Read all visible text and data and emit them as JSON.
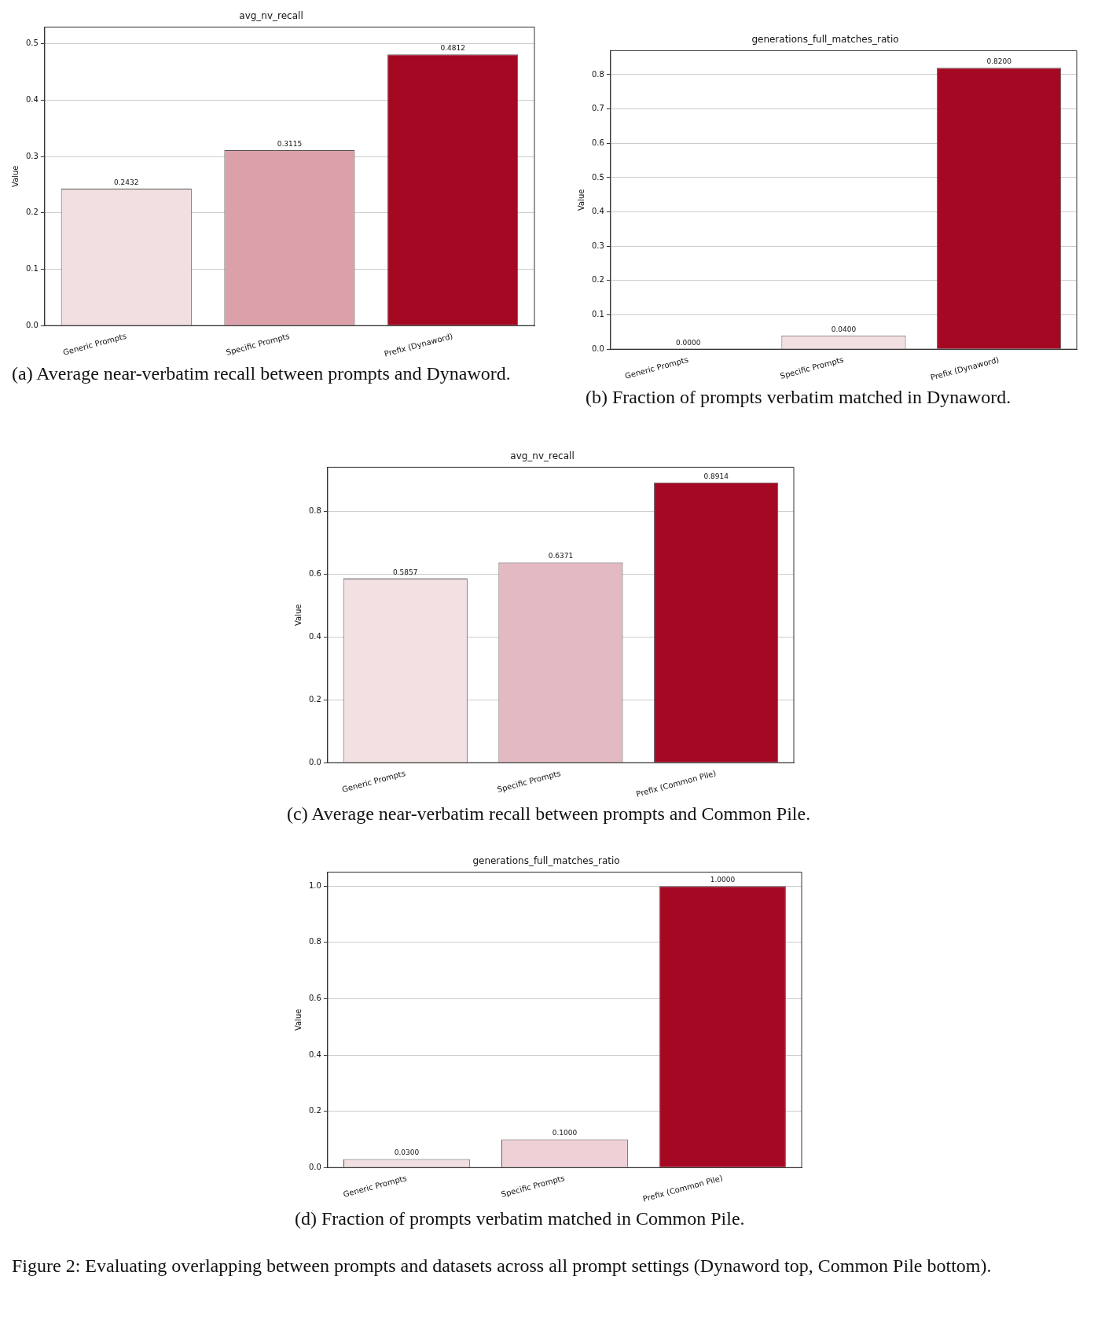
{
  "chart_data": [
    {
      "type": "bar",
      "title": "avg_nv_recall",
      "ylabel": "Value",
      "categories": [
        "Generic Prompts",
        "Specific Prompts",
        "Prefix (Dynaword)"
      ],
      "values": [
        0.2432,
        0.3115,
        0.4812
      ],
      "value_labels": [
        "0.2432",
        "0.3115",
        "0.4812"
      ],
      "colors": [
        "#f2dfe2",
        "#dba0aa",
        "#a50823"
      ],
      "ylim": [
        0,
        0.53
      ],
      "yticks": [
        {
          "value": 0,
          "label": "0.0"
        },
        {
          "value": 0.1,
          "label": "0.1"
        },
        {
          "value": 0.2,
          "label": "0.2"
        },
        {
          "value": 0.3,
          "label": "0.3"
        },
        {
          "value": 0.4,
          "label": "0.4"
        },
        {
          "value": 0.5,
          "label": "0.5"
        }
      ],
      "grid": "y",
      "annotations": [
        "(a) Average near-verbatim recall between prompts and Dynaword."
      ]
    },
    {
      "type": "bar",
      "title": "generations_full_matches_ratio",
      "ylabel": "Value",
      "categories": [
        "Generic Prompts",
        "Specific Prompts",
        "Prefix (Dynaword)"
      ],
      "values": [
        0,
        0.04,
        0.82
      ],
      "value_labels": [
        "0.0000",
        "0.0400",
        "0.8200"
      ],
      "colors": [
        "#f2dfe2",
        "#f2dfe2",
        "#a50823"
      ],
      "ylim": [
        0,
        0.87
      ],
      "yticks": [
        {
          "value": 0,
          "label": "0.0"
        },
        {
          "value": 0.1,
          "label": "0.1"
        },
        {
          "value": 0.2,
          "label": "0.2"
        },
        {
          "value": 0.3,
          "label": "0.3"
        },
        {
          "value": 0.4,
          "label": "0.4"
        },
        {
          "value": 0.5,
          "label": "0.5"
        },
        {
          "value": 0.6,
          "label": "0.6"
        },
        {
          "value": 0.7,
          "label": "0.7"
        },
        {
          "value": 0.8,
          "label": "0.8"
        }
      ],
      "grid": "y",
      "annotations": [
        "(b) Fraction of prompts verbatim matched in Dynaword."
      ]
    },
    {
      "type": "bar",
      "title": "avg_nv_recall",
      "ylabel": "Value",
      "categories": [
        "Generic Prompts",
        "Specific Prompts",
        "Prefix (Common Pile)"
      ],
      "values": [
        0.5857,
        0.6371,
        0.8914
      ],
      "value_labels": [
        "0.5857",
        "0.6371",
        "0.8914"
      ],
      "colors": [
        "#f2e0e3",
        "#e4bac2",
        "#a50823"
      ],
      "ylim": [
        0,
        0.94
      ],
      "yticks": [
        {
          "value": 0,
          "label": "0.0"
        },
        {
          "value": 0.2,
          "label": "0.2"
        },
        {
          "value": 0.4,
          "label": "0.4"
        },
        {
          "value": 0.6,
          "label": "0.6"
        },
        {
          "value": 0.8,
          "label": "0.8"
        }
      ],
      "grid": "y",
      "annotations": [
        "(c) Average near-verbatim recall between prompts and Common Pile."
      ]
    },
    {
      "type": "bar",
      "title": "generations_full_matches_ratio",
      "ylabel": "Value",
      "categories": [
        "Generic Prompts",
        "Specific Prompts",
        "Prefix (Common Pile)"
      ],
      "values": [
        0.03,
        0.1,
        1.0
      ],
      "value_labels": [
        "0.0300",
        "0.1000",
        "1.0000"
      ],
      "colors": [
        "#f2dfe2",
        "#efd0d6",
        "#a50823"
      ],
      "ylim": [
        0,
        1.05
      ],
      "yticks": [
        {
          "value": 0,
          "label": "0.0"
        },
        {
          "value": 0.2,
          "label": "0.2"
        },
        {
          "value": 0.4,
          "label": "0.4"
        },
        {
          "value": 0.6,
          "label": "0.6"
        },
        {
          "value": 0.8,
          "label": "0.8"
        },
        {
          "value": 1.0,
          "label": "1.0"
        }
      ],
      "grid": "y",
      "annotations": [
        "(d) Fraction of prompts verbatim matched in Common Pile.",
        "Figure 2: Evaluating overlapping between prompts and datasets across all prompt settings (Dynaword top, Common Pile bottom)."
      ]
    }
  ]
}
